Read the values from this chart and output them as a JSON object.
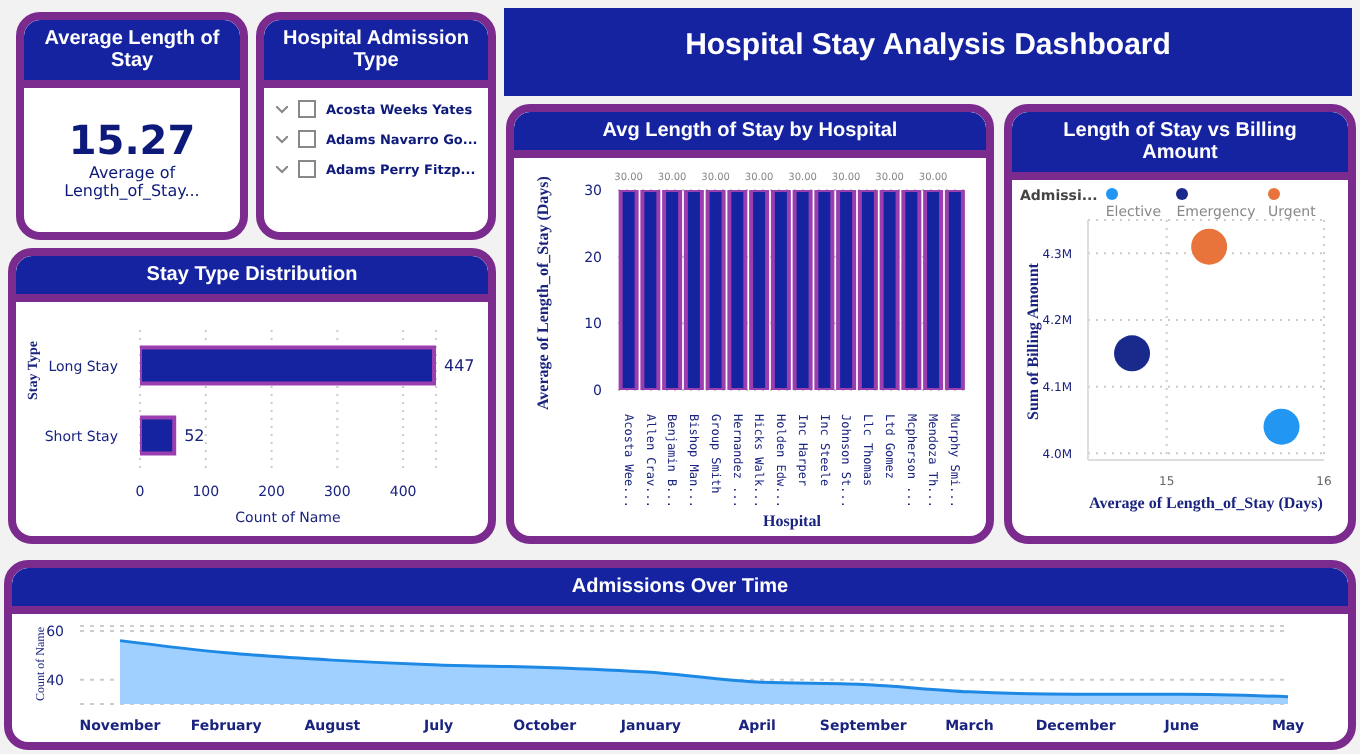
{
  "chart_data": [
    {
      "type": "other",
      "title": "Average Length of Stay",
      "values": [
        15.27
      ],
      "value_labels": [
        "15.27"
      ],
      "categories": [
        "Average of Length_of_Stay..."
      ]
    },
    {
      "type": "other",
      "title": "Hospital Admission Type",
      "annotations": [
        "Acosta Weeks Yates",
        "Adams Navarro Go...",
        "Adams Perry Fitzp..."
      ]
    },
    {
      "type": "other",
      "title": "Hospital Stay Analysis Dashboard"
    },
    {
      "type": "bar",
      "orientation": "horizontal",
      "title": "Stay Type Distribution",
      "categories": [
        "Long Stay",
        "Short Stay"
      ],
      "values": [
        447,
        52
      ],
      "color": "#1523a0",
      "xlim": [
        0,
        450
      ],
      "xticks": [
        0,
        100,
        200,
        300,
        400
      ],
      "xlabel": "Count of Name",
      "ylabel": "Stay Type",
      "data_labels": true,
      "grid": "x"
    },
    {
      "type": "bar",
      "title": "Avg Length of Stay by Hospital",
      "categories": [
        "Acosta Wee...",
        "Allen Crav...",
        "Benjamin B...",
        "Bishop Man...",
        "Group Smith",
        "Hernandez ...",
        "Hicks Walk...",
        "Holden Edw...",
        "Inc Harper",
        "Inc Steele",
        "Johnson St...",
        "Llc Thomas",
        "Ltd Gomez",
        "Mcpherson ...",
        "Mendoza Th...",
        "Murphy Smi..."
      ],
      "values": [
        30,
        30,
        30,
        30,
        30,
        30,
        30,
        30,
        30,
        30,
        30,
        30,
        30,
        30,
        30,
        30
      ],
      "value_labels": [
        "30.00",
        null,
        "30.00",
        null,
        "30.00",
        null,
        "30.00",
        null,
        "30.00",
        null,
        "30.00",
        null,
        "30.00",
        null,
        "30.00",
        null
      ],
      "color": "#1523a0",
      "ylim": [
        0,
        30
      ],
      "yticks": [
        0,
        10,
        20,
        30
      ],
      "xlabel": "Hospital",
      "ylabel": "Average of Length_of_Stay (Days)",
      "grid": "y"
    },
    {
      "type": "scatter",
      "title": "Length of Stay vs Billing Amount",
      "legend_title": "Admissi...",
      "legend": "top left",
      "xlabel": "Average of Length_of_Stay (Days)",
      "ylabel": "Sum of Billing Amount",
      "xlim": [
        14.5,
        16
      ],
      "xticks": [
        15,
        16
      ],
      "ylim": [
        3990000,
        4350000
      ],
      "yticks": [
        {
          "value": 4000000,
          "label": "4.0M"
        },
        {
          "value": 4100000,
          "label": "4.1M"
        },
        {
          "value": 4200000,
          "label": "4.2M"
        },
        {
          "value": 4300000,
          "label": "4.3M"
        }
      ],
      "grid": true,
      "marker": "circle",
      "series": [
        {
          "name": "Elective",
          "color": "#2196f3",
          "x": [
            15.73
          ],
          "values": [
            4040000
          ]
        },
        {
          "name": "Emergency",
          "color": "#1a2a8c",
          "x": [
            14.78
          ],
          "values": [
            4150000
          ]
        },
        {
          "name": "Urgent",
          "color": "#e8743b",
          "x": [
            15.27
          ],
          "values": [
            4310000
          ]
        }
      ]
    },
    {
      "type": "area",
      "title": "Admissions Over Time",
      "categories": [
        "November",
        "February",
        "August",
        "July",
        "October",
        "January",
        "April",
        "September",
        "March",
        "December",
        "June",
        "May"
      ],
      "values": [
        56,
        51,
        48,
        46,
        45,
        43,
        39,
        38,
        35,
        34,
        34,
        33
      ],
      "color": "#1e88e5",
      "ylim": [
        30,
        62
      ],
      "yticks": [
        40,
        60
      ],
      "ylabel": "Count of Name",
      "grid": "y"
    }
  ]
}
